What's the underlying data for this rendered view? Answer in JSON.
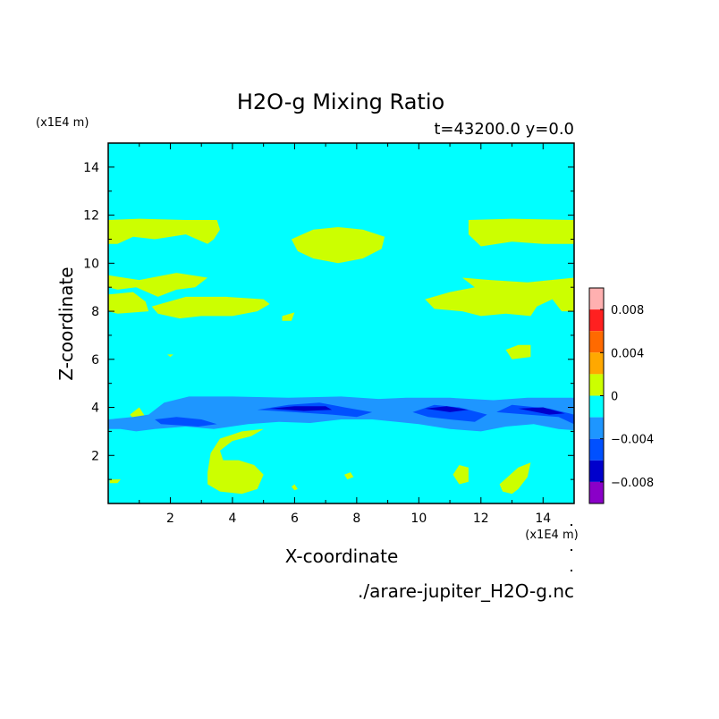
{
  "chart_data": {
    "type": "heatmap",
    "title": "H2O-g Mixing Ratio",
    "subtitle": "t=43200.0 y=0.0",
    "xlabel": "X-coordinate",
    "ylabel": "Z-coordinate",
    "x_unit": "(x1E4 m)",
    "y_unit": "(x1E4 m)",
    "xlim": [
      0,
      15
    ],
    "ylim": [
      0,
      15
    ],
    "xticks": [
      2,
      4,
      6,
      8,
      10,
      12,
      14
    ],
    "yticks": [
      2,
      4,
      6,
      8,
      10,
      12,
      14
    ],
    "background_level": "0 to -0.002",
    "source_file": "./arare-jupiter_H2O-g.nc",
    "colorbar": {
      "labels": [
        {
          "value": 0.008,
          "text": "0.008"
        },
        {
          "value": 0.004,
          "text": "0.004"
        },
        {
          "value": 0,
          "text": "0"
        },
        {
          "value": -0.004,
          "text": "−0.004"
        },
        {
          "value": -0.008,
          "text": "−0.008"
        }
      ],
      "levels": [
        {
          "from": 0.008,
          "to": 0.01,
          "color": "#ffb0b0"
        },
        {
          "from": 0.006,
          "to": 0.008,
          "color": "#ff2020"
        },
        {
          "from": 0.004,
          "to": 0.006,
          "color": "#ff6a00"
        },
        {
          "from": 0.002,
          "to": 0.004,
          "color": "#ffa800"
        },
        {
          "from": 0.0,
          "to": 0.002,
          "color": "#ccff00"
        },
        {
          "from": -0.002,
          "to": 0.0,
          "color": "#00ffff"
        },
        {
          "from": -0.004,
          "to": -0.002,
          "color": "#1e96ff"
        },
        {
          "from": -0.006,
          "to": -0.004,
          "color": "#0050ff"
        },
        {
          "from": -0.008,
          "to": -0.006,
          "color": "#0000cc"
        },
        {
          "from": -0.01,
          "to": -0.008,
          "color": "#8a00c8"
        }
      ]
    },
    "regions": [
      {
        "level": 0.001,
        "color": "#ccff00",
        "points": [
          [
            0,
            11.8
          ],
          [
            1.0,
            11.85
          ],
          [
            2.5,
            11.8
          ],
          [
            3.5,
            11.8
          ],
          [
            3.6,
            11.4
          ],
          [
            3.4,
            11.0
          ],
          [
            3.2,
            10.8
          ],
          [
            2.5,
            11.2
          ],
          [
            1.5,
            11.0
          ],
          [
            0.8,
            11.1
          ],
          [
            0.3,
            10.8
          ],
          [
            0,
            10.8
          ]
        ]
      },
      {
        "level": 0.001,
        "color": "#ccff00",
        "points": [
          [
            5.9,
            11.0
          ],
          [
            6.6,
            11.4
          ],
          [
            7.4,
            11.5
          ],
          [
            8.2,
            11.4
          ],
          [
            8.9,
            11.1
          ],
          [
            8.8,
            10.6
          ],
          [
            8.2,
            10.2
          ],
          [
            7.4,
            10.0
          ],
          [
            6.6,
            10.2
          ],
          [
            6.1,
            10.5
          ]
        ]
      },
      {
        "level": 0.001,
        "color": "#ccff00",
        "points": [
          [
            11.6,
            11.8
          ],
          [
            13.0,
            11.85
          ],
          [
            15,
            11.8
          ],
          [
            15,
            10.8
          ],
          [
            14.0,
            10.8
          ],
          [
            13.0,
            10.9
          ],
          [
            12.0,
            10.7
          ],
          [
            11.6,
            11.2
          ]
        ]
      },
      {
        "level": 0.001,
        "color": "#ccff00",
        "points": [
          [
            0,
            9.5
          ],
          [
            1.0,
            9.3
          ],
          [
            2.2,
            9.6
          ],
          [
            3.2,
            9.4
          ],
          [
            2.8,
            9.0
          ],
          [
            2.2,
            8.9
          ],
          [
            1.6,
            8.6
          ],
          [
            0.9,
            9.0
          ],
          [
            0.3,
            8.9
          ],
          [
            0,
            9.0
          ]
        ]
      },
      {
        "level": 0.001,
        "color": "#ccff00",
        "points": [
          [
            0,
            8.7
          ],
          [
            0.8,
            8.8
          ],
          [
            1.2,
            8.4
          ],
          [
            1.3,
            8.0
          ],
          [
            0.3,
            7.9
          ],
          [
            0,
            8.0
          ]
        ]
      },
      {
        "level": 0.001,
        "color": "#ccff00",
        "points": [
          [
            1.4,
            8.2
          ],
          [
            2.5,
            8.6
          ],
          [
            3.8,
            8.6
          ],
          [
            5.0,
            8.5
          ],
          [
            5.2,
            8.3
          ],
          [
            4.8,
            8.0
          ],
          [
            4.0,
            7.8
          ],
          [
            3.0,
            7.8
          ],
          [
            2.3,
            7.7
          ],
          [
            1.6,
            7.9
          ]
        ]
      },
      {
        "level": 0.001,
        "color": "#ccff00",
        "points": [
          [
            5.6,
            7.8
          ],
          [
            6.0,
            7.95
          ],
          [
            5.9,
            7.6
          ],
          [
            5.6,
            7.6
          ]
        ]
      },
      {
        "level": 0.001,
        "color": "#ccff00",
        "points": [
          [
            11.4,
            9.4
          ],
          [
            12.3,
            9.3
          ],
          [
            13.5,
            9.2
          ],
          [
            15,
            9.4
          ],
          [
            15,
            8.0
          ],
          [
            14.6,
            8.0
          ],
          [
            14.3,
            8.5
          ],
          [
            13.8,
            8.2
          ],
          [
            13.6,
            7.8
          ],
          [
            12.8,
            7.9
          ],
          [
            12.0,
            7.8
          ],
          [
            11.4,
            8.0
          ],
          [
            10.5,
            8.1
          ],
          [
            10.2,
            8.5
          ],
          [
            11.0,
            8.8
          ],
          [
            11.8,
            9.0
          ]
        ]
      },
      {
        "level": 0.001,
        "color": "#ccff00",
        "points": [
          [
            12.8,
            6.4
          ],
          [
            13.2,
            6.6
          ],
          [
            13.6,
            6.6
          ],
          [
            13.6,
            6.1
          ],
          [
            13.0,
            6.0
          ]
        ]
      },
      {
        "level": 0.001,
        "color": "#ccff00",
        "points": [
          [
            1.9,
            6.2
          ],
          [
            2.1,
            6.2
          ],
          [
            2.0,
            6.1
          ]
        ]
      },
      {
        "level": 0.001,
        "color": "#ccff00",
        "points": [
          [
            0.7,
            3.7
          ],
          [
            1.0,
            4.0
          ],
          [
            1.2,
            3.6
          ],
          [
            0.9,
            3.4
          ]
        ]
      },
      {
        "level": -0.003,
        "color": "#1e96ff",
        "points": [
          [
            0,
            3.5
          ],
          [
            0.8,
            3.6
          ],
          [
            1.3,
            3.7
          ],
          [
            1.8,
            4.2
          ],
          [
            2.6,
            4.45
          ],
          [
            4.0,
            4.45
          ],
          [
            5.8,
            4.4
          ],
          [
            7.5,
            4.45
          ],
          [
            8.7,
            4.35
          ],
          [
            9.6,
            4.4
          ],
          [
            11.0,
            4.4
          ],
          [
            12.4,
            4.3
          ],
          [
            13.5,
            4.4
          ],
          [
            15,
            4.4
          ],
          [
            15,
            3.05
          ],
          [
            14.5,
            3.1
          ],
          [
            13.7,
            3.3
          ],
          [
            12.8,
            3.2
          ],
          [
            12.0,
            3.0
          ],
          [
            11.0,
            3.1
          ],
          [
            10.0,
            3.3
          ],
          [
            9.3,
            3.4
          ],
          [
            8.5,
            3.5
          ],
          [
            7.5,
            3.5
          ],
          [
            6.5,
            3.35
          ],
          [
            5.5,
            3.4
          ],
          [
            4.5,
            3.3
          ],
          [
            3.4,
            3.1
          ],
          [
            2.5,
            3.2
          ],
          [
            1.5,
            3.1
          ],
          [
            0.9,
            3.0
          ],
          [
            0.4,
            3.1
          ],
          [
            0,
            3.1
          ]
        ]
      },
      {
        "level": -0.005,
        "color": "#0050ff",
        "points": [
          [
            1.5,
            3.5
          ],
          [
            2.2,
            3.6
          ],
          [
            3.0,
            3.5
          ],
          [
            3.5,
            3.3
          ],
          [
            2.9,
            3.2
          ],
          [
            1.7,
            3.3
          ]
        ]
      },
      {
        "level": -0.005,
        "color": "#0050ff",
        "points": [
          [
            4.8,
            3.9
          ],
          [
            5.8,
            4.1
          ],
          [
            6.8,
            4.2
          ],
          [
            7.6,
            4.0
          ],
          [
            8.5,
            3.8
          ],
          [
            8.0,
            3.6
          ],
          [
            7.2,
            3.7
          ],
          [
            6.0,
            3.8
          ]
        ]
      },
      {
        "level": -0.005,
        "color": "#0050ff",
        "points": [
          [
            9.8,
            3.8
          ],
          [
            10.5,
            4.1
          ],
          [
            11.3,
            4.0
          ],
          [
            12.2,
            3.7
          ],
          [
            11.8,
            3.4
          ],
          [
            11.0,
            3.5
          ],
          [
            10.3,
            3.6
          ]
        ]
      },
      {
        "level": -0.005,
        "color": "#0050ff",
        "points": [
          [
            12.5,
            3.8
          ],
          [
            13.0,
            4.1
          ],
          [
            14.2,
            3.95
          ],
          [
            15,
            3.7
          ],
          [
            15,
            3.3
          ],
          [
            14.5,
            3.6
          ],
          [
            13.5,
            3.7
          ]
        ]
      },
      {
        "level": -0.007,
        "color": "#0000cc",
        "points": [
          [
            5.2,
            3.95
          ],
          [
            6.0,
            4.05
          ],
          [
            7.0,
            4.05
          ],
          [
            7.2,
            3.9
          ],
          [
            6.3,
            3.85
          ]
        ]
      },
      {
        "level": -0.007,
        "color": "#0000cc",
        "points": [
          [
            10.2,
            3.95
          ],
          [
            10.9,
            4.05
          ],
          [
            11.6,
            3.9
          ],
          [
            11.0,
            3.8
          ]
        ]
      },
      {
        "level": -0.007,
        "color": "#0000cc",
        "points": [
          [
            13.2,
            3.95
          ],
          [
            14.0,
            4.0
          ],
          [
            14.7,
            3.75
          ],
          [
            14.2,
            3.7
          ]
        ]
      },
      {
        "level": 0.001,
        "color": "#ccff00",
        "points": [
          [
            3.2,
            1.3
          ],
          [
            3.3,
            2.1
          ],
          [
            3.6,
            2.7
          ],
          [
            4.3,
            3.0
          ],
          [
            5.0,
            3.1
          ],
          [
            4.6,
            2.8
          ],
          [
            4.0,
            2.6
          ],
          [
            3.6,
            2.2
          ],
          [
            3.7,
            1.8
          ],
          [
            4.2,
            1.8
          ],
          [
            4.7,
            1.6
          ],
          [
            5.0,
            1.2
          ],
          [
            4.8,
            0.6
          ],
          [
            4.3,
            0.4
          ],
          [
            3.6,
            0.5
          ],
          [
            3.2,
            0.8
          ]
        ]
      },
      {
        "level": 0.001,
        "color": "#ccff00",
        "points": [
          [
            7.6,
            1.2
          ],
          [
            7.8,
            1.3
          ],
          [
            7.9,
            1.1
          ],
          [
            7.7,
            1.0
          ]
        ]
      },
      {
        "level": 0.001,
        "color": "#ccff00",
        "points": [
          [
            11.1,
            1.2
          ],
          [
            11.3,
            1.6
          ],
          [
            11.6,
            1.5
          ],
          [
            11.6,
            0.9
          ],
          [
            11.3,
            0.8
          ]
        ]
      },
      {
        "level": 0.001,
        "color": "#ccff00",
        "points": [
          [
            12.6,
            0.8
          ],
          [
            13.2,
            1.5
          ],
          [
            13.6,
            1.7
          ],
          [
            13.5,
            1.1
          ],
          [
            13.2,
            0.6
          ],
          [
            13.0,
            0.4
          ],
          [
            12.7,
            0.5
          ]
        ]
      },
      {
        "level": 0.001,
        "color": "#ccff00",
        "points": [
          [
            5.9,
            0.7
          ],
          [
            6.0,
            0.8
          ],
          [
            6.1,
            0.6
          ],
          [
            6.0,
            0.55
          ]
        ]
      },
      {
        "level": 0.001,
        "color": "#ccff00",
        "points": [
          [
            0.05,
            1.0
          ],
          [
            0.4,
            1.0
          ],
          [
            0.3,
            0.85
          ],
          [
            0.05,
            0.85
          ]
        ]
      }
    ]
  }
}
